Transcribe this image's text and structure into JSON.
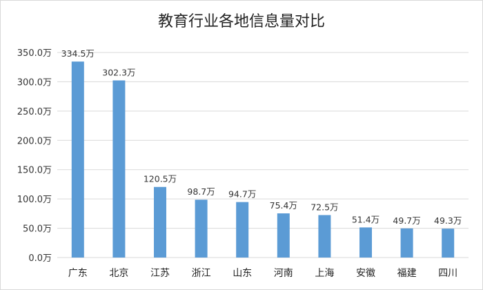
{
  "chart_data": {
    "type": "bar",
    "title": "教育行业各地信息量对比",
    "xlabel": "",
    "ylabel": "",
    "ylim": [
      0,
      350
    ],
    "yticks": [
      0,
      50,
      100,
      150,
      200,
      250,
      300,
      350
    ],
    "ytick_labels": [
      "0.0万",
      "50.0万",
      "100.0万",
      "150.0万",
      "200.0万",
      "250.0万",
      "300.0万",
      "350.0万"
    ],
    "grid": true,
    "legend": "none",
    "categories": [
      "广东",
      "北京",
      "江苏",
      "浙江",
      "山东",
      "河南",
      "上海",
      "安徽",
      "福建",
      "四川"
    ],
    "values": [
      334.5,
      302.3,
      120.5,
      98.7,
      94.7,
      75.4,
      72.5,
      51.4,
      49.7,
      49.3
    ],
    "value_labels": [
      "334.5万",
      "302.3万",
      "120.5万",
      "98.7万",
      "94.7万",
      "75.4万",
      "72.5万",
      "51.4万",
      "49.7万",
      "49.3万"
    ],
    "bar_color": "#5b9bd5",
    "grid_color": "#d9d9d9"
  }
}
